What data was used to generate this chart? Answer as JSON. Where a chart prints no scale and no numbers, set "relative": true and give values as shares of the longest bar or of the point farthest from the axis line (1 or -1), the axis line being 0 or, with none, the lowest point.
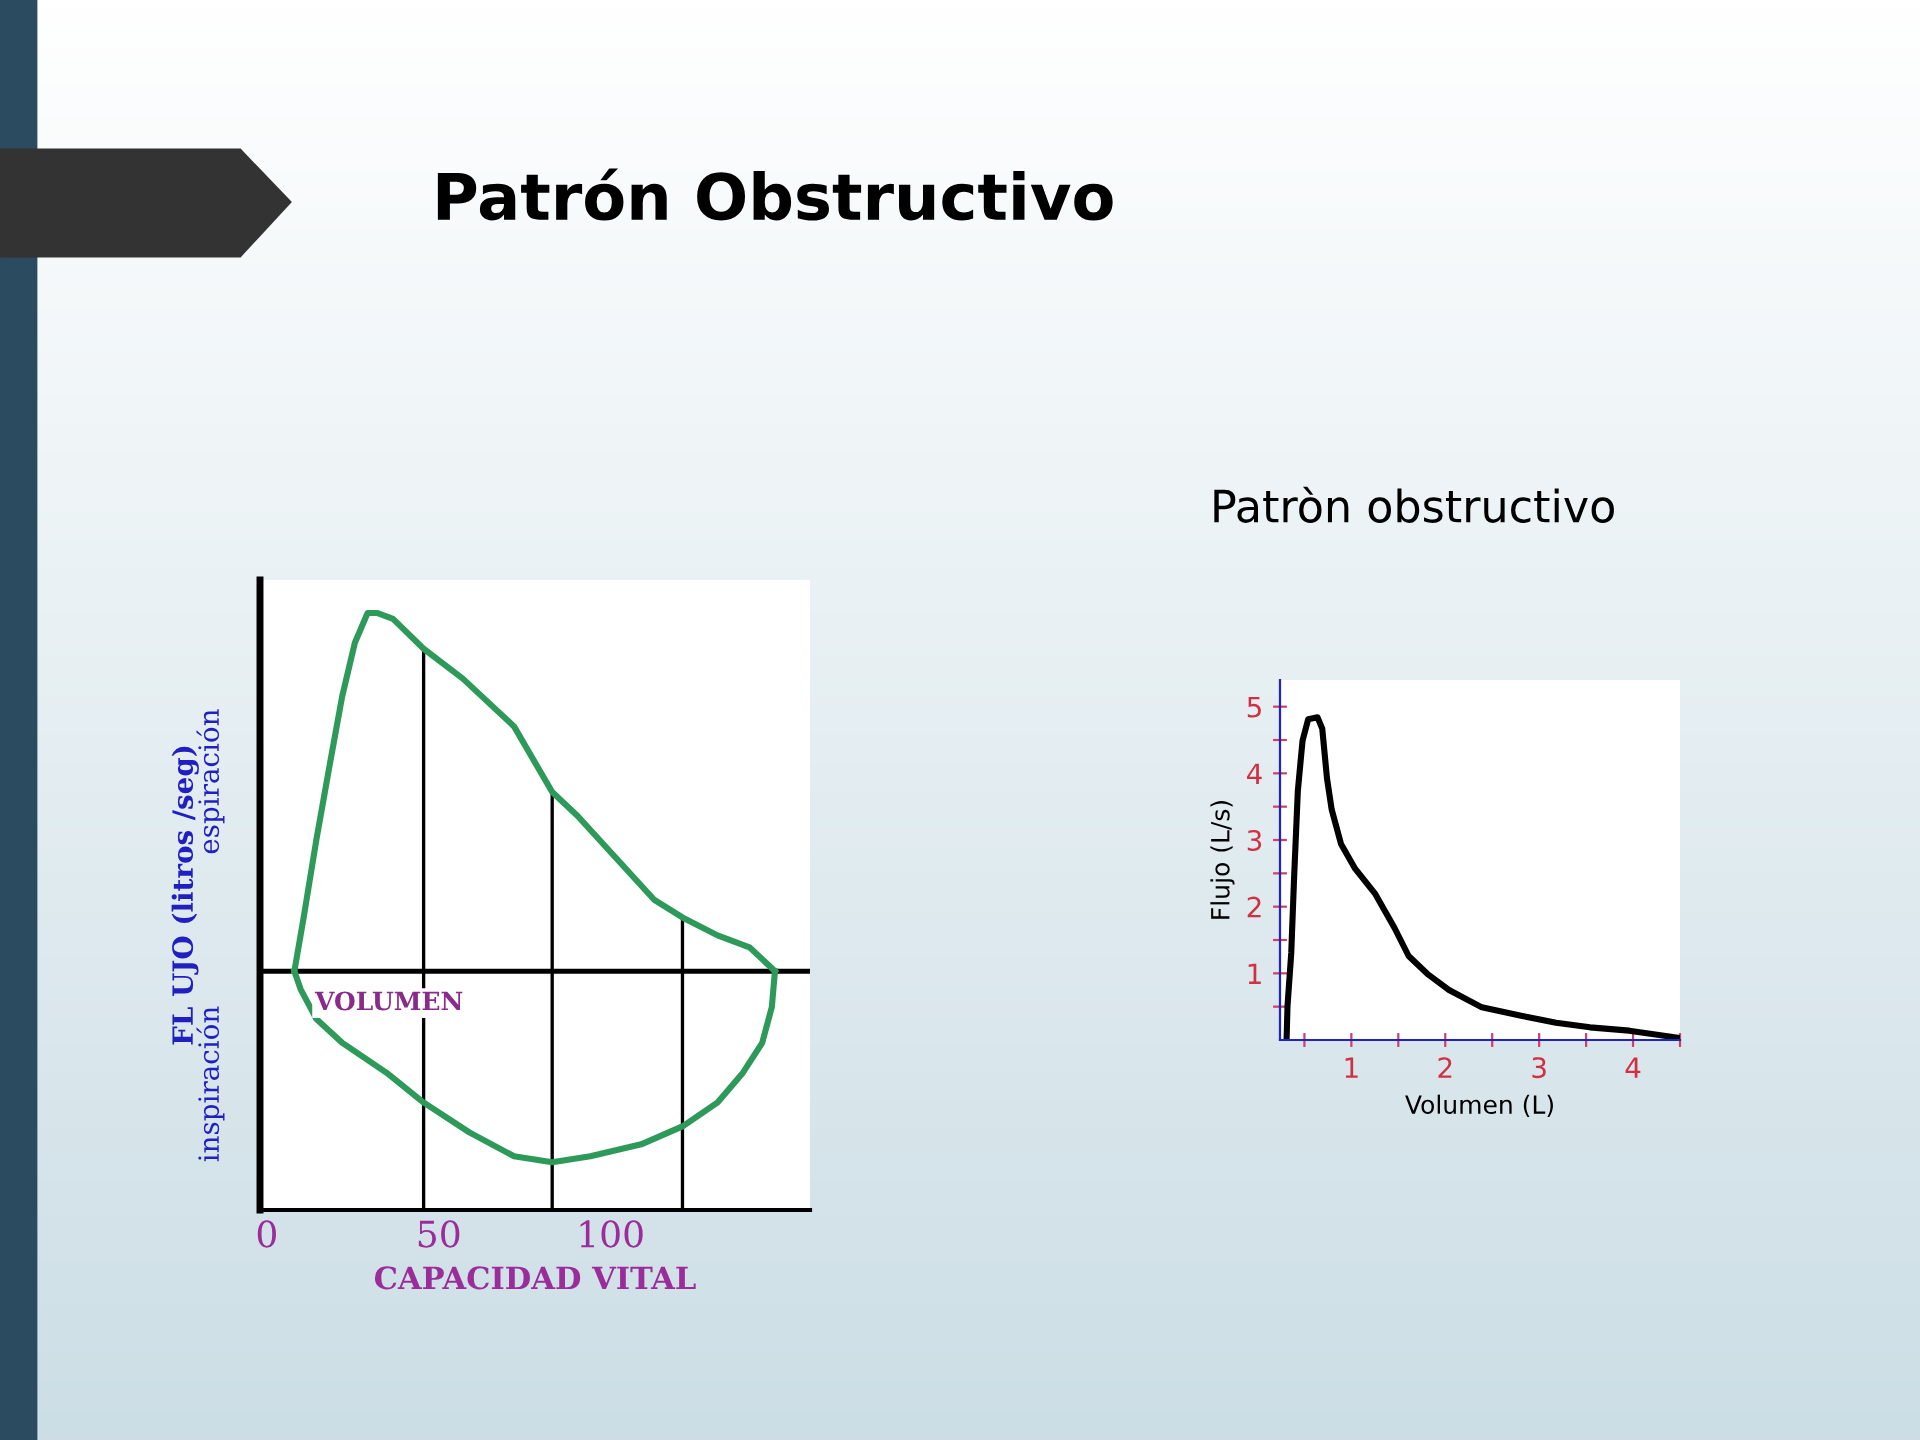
{
  "chart_data": [
    {
      "type": "line",
      "title": "Patrón Obstructivo",
      "xlabel": "CAPACIDAD VITAL",
      "ylabel": "FL UJO (litros /seg)",
      "relative": true,
      "series": [
        {
          "color": "#2e9a5a",
          "x": [
            8,
            10.7,
            14.4,
            18.1,
            21.9,
            25.6,
            29.3,
            32,
            36.7,
            45.6,
            57,
            71.9,
            83,
            90.4,
            101.5,
            112.6,
            120.9,
            131.1,
            140.4,
            147.8
          ],
          "values": [
            0.4,
            0.49,
            0.62,
            0.74,
            0.86,
            0.95,
            1.0,
            1.0,
            0.99,
            0.94,
            0.89,
            0.81,
            0.7,
            0.66,
            0.59,
            0.52,
            0.49,
            0.46,
            0.44,
            0.4
          ]
        },
        {
          "color": "#2e9a5a",
          "x": [
            8,
            9.8,
            14.4,
            21.9,
            34.8,
            45.6,
            58.9,
            71.9,
            83,
            94.1,
            108.9,
            120.9,
            131.1,
            138.5,
            144.1,
            146.9,
            147.8
          ],
          "values": [
            0.4,
            0.37,
            0.32,
            0.28,
            0.23,
            0.18,
            0.13,
            0.09,
            0.08,
            0.09,
            0.11,
            0.14,
            0.18,
            0.23,
            0.28,
            0.34,
            0.4
          ]
        }
      ],
      "xlim": [
        -2,
        158
      ],
      "xticks": [
        0,
        50,
        100
      ],
      "ref_lines": [
        {
          "axis": "y",
          "value": 0.4,
          "label": "VOLUMEN",
          "color": "#000000"
        },
        {
          "axis": "x",
          "value": 45.6,
          "color": "#000000"
        },
        {
          "axis": "x",
          "value": 83,
          "color": "#000000"
        },
        {
          "axis": "x",
          "value": 120.9,
          "color": "#000000"
        }
      ],
      "annotations": [
        "espiración",
        "inspiración"
      ],
      "marker": "none",
      "line_style": "solid",
      "grid": false,
      "legend": false
    },
    {
      "type": "line",
      "title": "Patròn obstructivo",
      "xlabel": "Volumen (L)",
      "ylabel": "Flujo (L/s)",
      "x": [
        0.31,
        0.32,
        0.36,
        0.39,
        0.43,
        0.48,
        0.54,
        0.64,
        0.69,
        0.74,
        0.79,
        0.89,
        1.04,
        1.25,
        1.46,
        1.61,
        1.82,
        2.04,
        2.39,
        2.82,
        3.18,
        3.54,
        3.96,
        4.5
      ],
      "series": [
        {
          "color": "#000000",
          "values": [
            0,
            0.51,
            1.31,
            2.43,
            3.74,
            4.49,
            4.81,
            4.84,
            4.67,
            3.93,
            3.46,
            2.94,
            2.57,
            2.2,
            1.68,
            1.26,
            0.98,
            0.75,
            0.49,
            0.36,
            0.26,
            0.19,
            0.14,
            0.03
          ]
        }
      ],
      "xlim": [
        0.24,
        4.5
      ],
      "ylim": [
        0,
        5.4
      ],
      "xticks": [
        {
          "value": 0.5,
          "label": null
        },
        1,
        {
          "value": 1.5,
          "label": null
        },
        2,
        {
          "value": 2.5,
          "label": null
        },
        3,
        {
          "value": 3.5,
          "label": null
        },
        4,
        {
          "value": 4.5,
          "label": null
        }
      ],
      "yticks": [
        {
          "value": 0.5,
          "label": null
        },
        1,
        {
          "value": 1.5,
          "label": null
        },
        2,
        {
          "value": 2.5,
          "label": null
        },
        3,
        {
          "value": 3.5,
          "label": null
        },
        4,
        {
          "value": 4.5,
          "label": null
        },
        5
      ],
      "marker": "none",
      "line_style": "solid",
      "grid": false,
      "legend": false
    }
  ]
}
